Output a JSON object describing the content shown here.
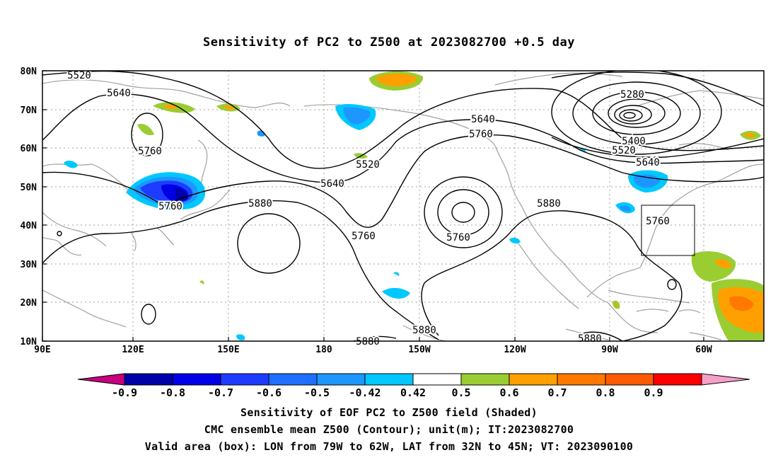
{
  "title": "Sensitivity of PC2 to Z500 at 2023082700 +0.5 day",
  "lat_ticks": [
    "80N",
    "70N",
    "60N",
    "50N",
    "40N",
    "30N",
    "20N",
    "10N"
  ],
  "lon_ticks": [
    "90E",
    "120E",
    "150E",
    "180",
    "150W",
    "120W",
    "90W",
    "60W"
  ],
  "contour_labels": [
    "5520",
    "5640",
    "5760",
    "5760",
    "5520",
    "5640",
    "5880",
    "5760",
    "5640",
    "5760",
    "5760",
    "5880",
    "5880",
    "5880",
    "5280",
    "5400",
    "5520",
    "5640",
    "5760",
    "5880"
  ],
  "colorbar": {
    "labels": [
      "-0.9",
      "-0.8",
      "-0.7",
      "-0.6",
      "-0.5",
      "-0.42",
      "0.42",
      "0.5",
      "0.6",
      "0.7",
      "0.8",
      "0.9"
    ],
    "colors": [
      "#c8007f",
      "#0000a8",
      "#0000e6",
      "#1e3cff",
      "#1e6eff",
      "#1e96ff",
      "#00c8ff",
      "#ffffff",
      "#9acd32",
      "#ffa000",
      "#ff7800",
      "#ff5a00",
      "#ff0000",
      "#f5a0c8"
    ]
  },
  "colors": {
    "contour": "#000000",
    "coastline": "#a0a0a0",
    "grid": "#a0a0a0"
  },
  "captions": [
    "Sensitivity of EOF PC2 to Z500 field (Shaded)",
    "CMC ensemble mean Z500 (Contour); unit(m); IT:2023082700",
    "Valid area (box): LON from 79W to 62W, LAT from 32N to 45N; VT: 2023090100"
  ]
}
